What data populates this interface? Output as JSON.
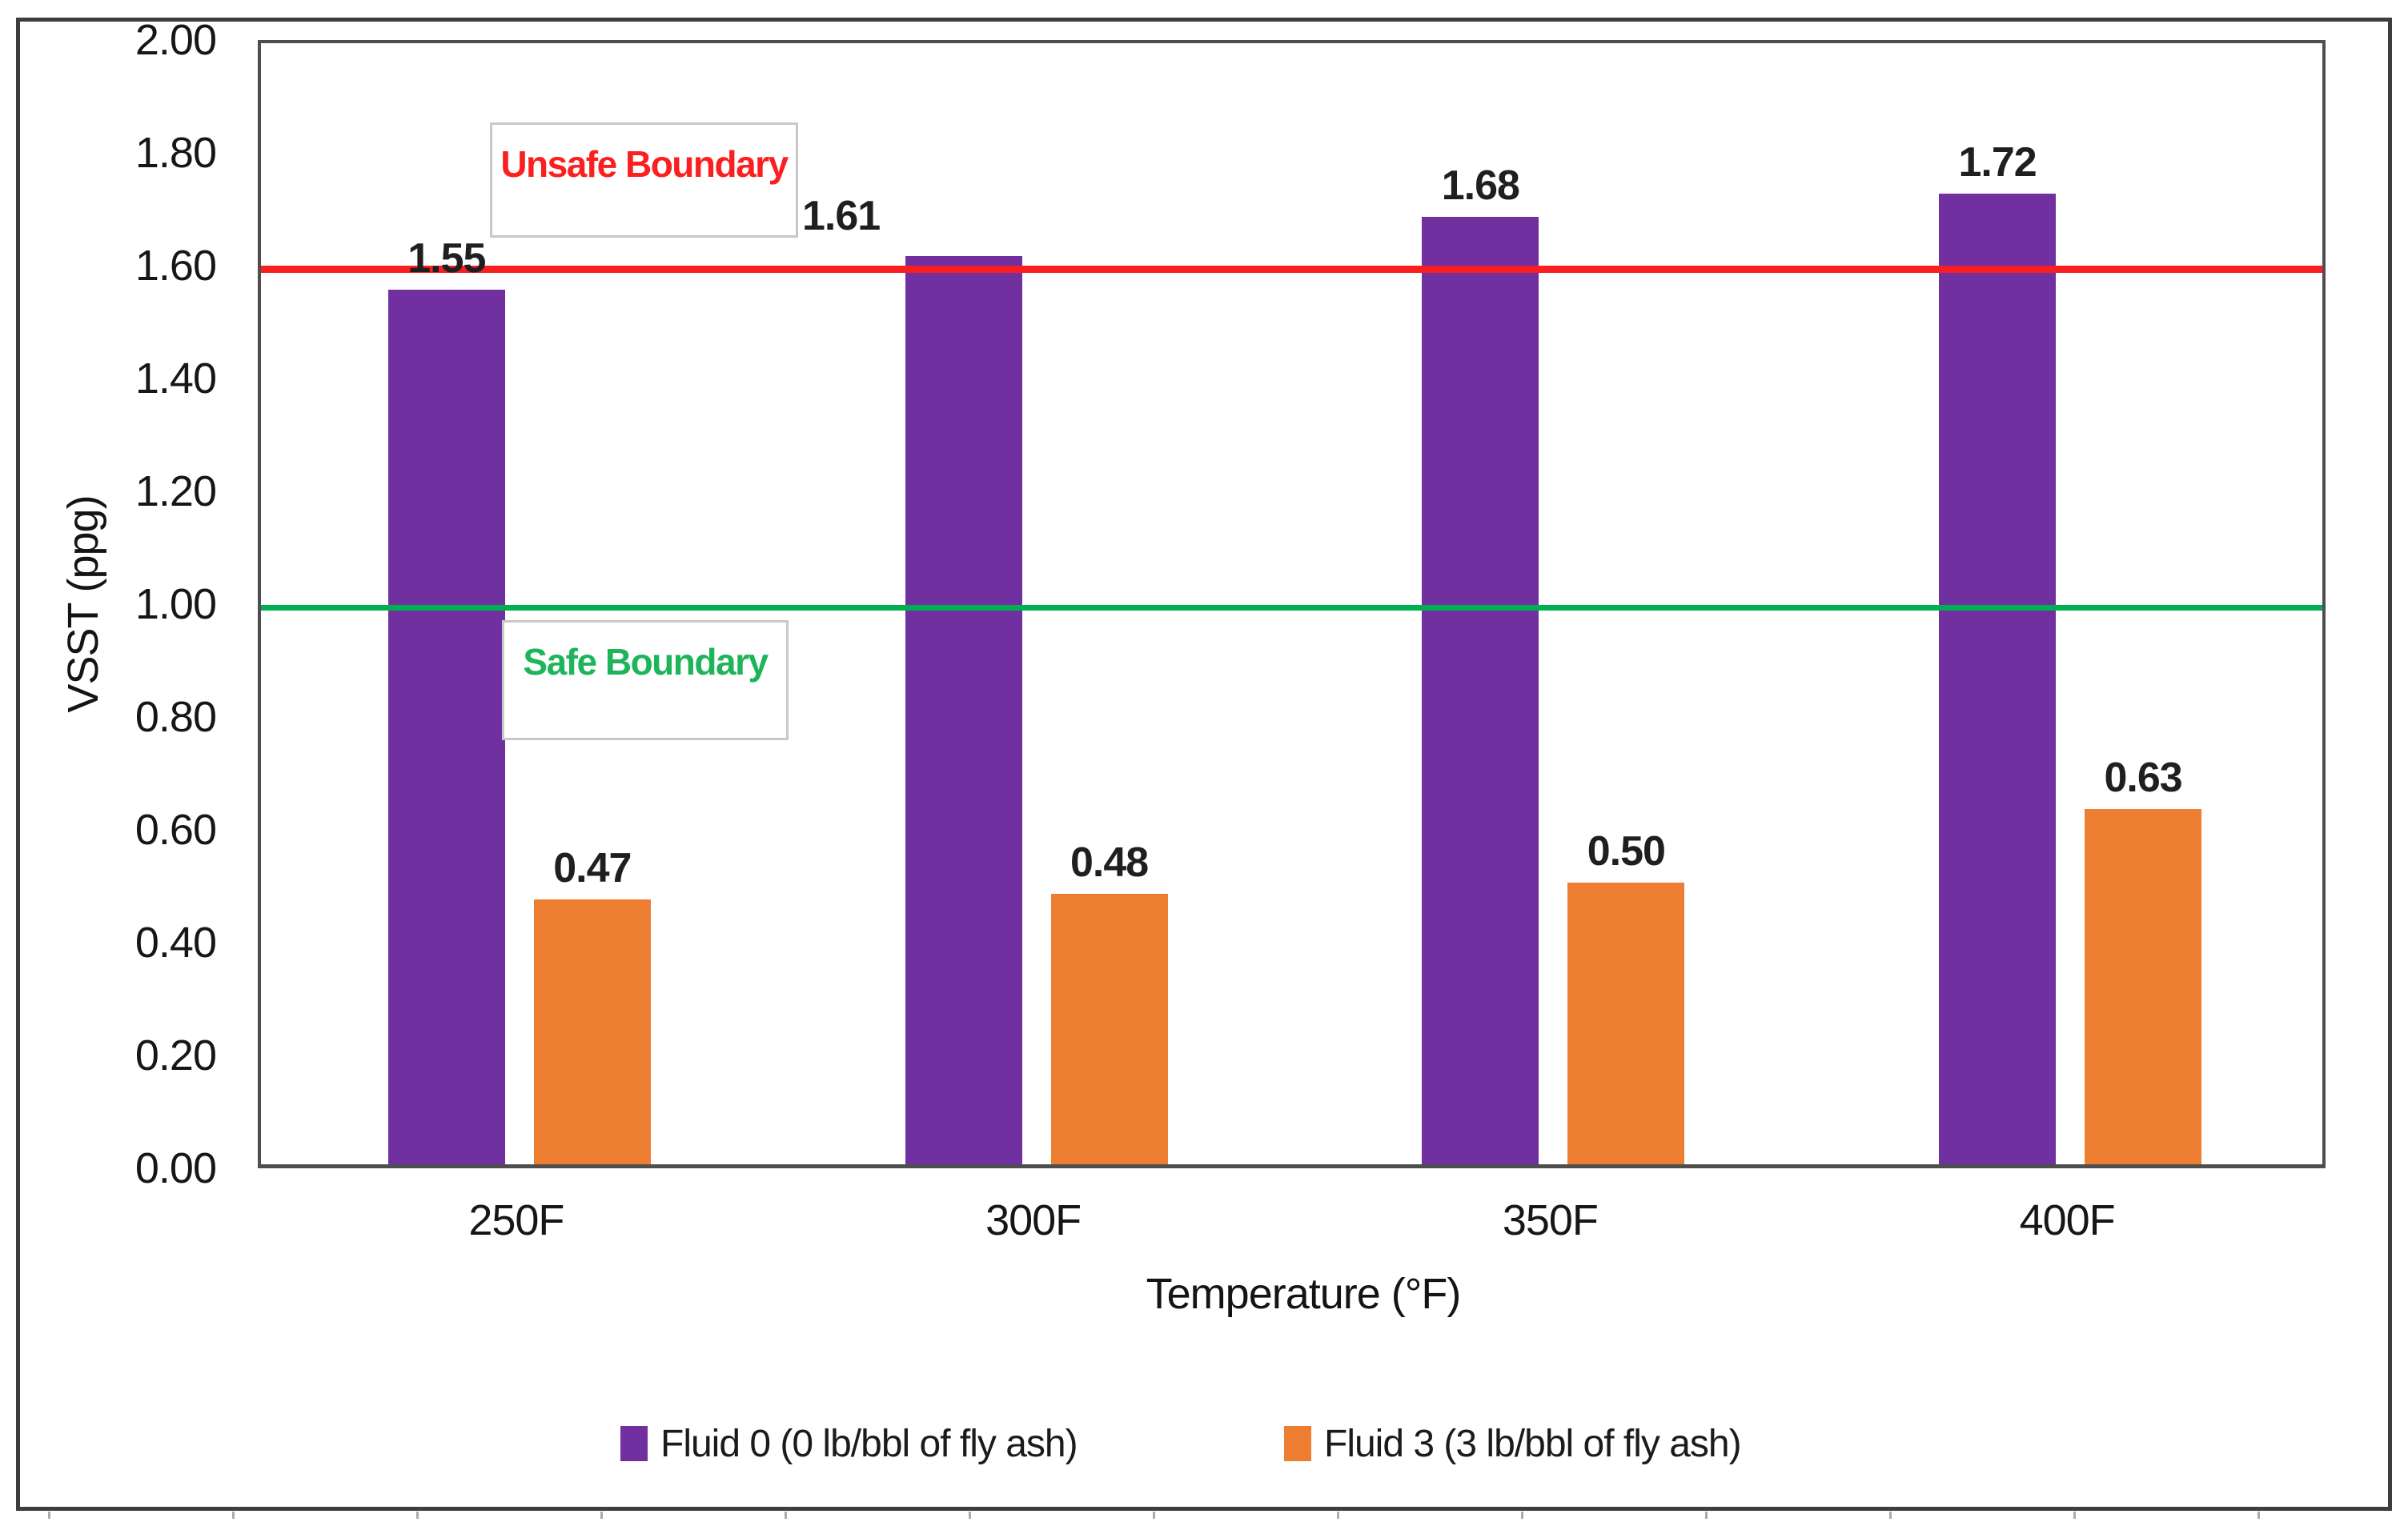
{
  "chart_data": {
    "type": "bar",
    "title": "",
    "xlabel": "Temperature (°F)",
    "ylabel": "VSST (ppg)",
    "categories": [
      "250F",
      "300F",
      "350F",
      "400F"
    ],
    "series": [
      {
        "name": "Fluid 0 (0 lb/bbl of fly ash)",
        "color": "#7030A0",
        "values": [
          1.55,
          1.61,
          1.68,
          1.72
        ],
        "labels": [
          "1.55",
          "1.61",
          "1.68",
          "1.72"
        ]
      },
      {
        "name": "Fluid 3 (3 lb/bbl of fly ash)",
        "color": "#ED7D31",
        "values": [
          0.47,
          0.48,
          0.5,
          0.63
        ],
        "labels": [
          "0.47",
          "0.48",
          "0.50",
          "0.63"
        ]
      }
    ],
    "ylim": [
      0.0,
      2.0
    ],
    "ytick_step": 0.2,
    "ytick_labels": [
      "0.00",
      "0.20",
      "0.40",
      "0.60",
      "0.80",
      "1.00",
      "1.20",
      "1.40",
      "1.60",
      "1.80",
      "2.00"
    ],
    "grid": false,
    "legend_position": "bottom",
    "reference_lines": [
      {
        "label": "Unsafe Boundary",
        "value": 1.6,
        "color": "#F91E20",
        "text_color": "#FB2020"
      },
      {
        "label": "Safe Boundary",
        "value": 1.0,
        "color": "#00B050",
        "text_color": "#1EB45A"
      }
    ],
    "label_offsets": {
      "series0": [
        [
          0,
          0
        ],
        [
          -153,
          -11
        ],
        [
          0,
          0
        ],
        [
          0,
          0
        ]
      ],
      "series1": [
        [
          0,
          0
        ],
        [
          0,
          0
        ],
        [
          0,
          0
        ],
        [
          0,
          0
        ]
      ]
    }
  }
}
